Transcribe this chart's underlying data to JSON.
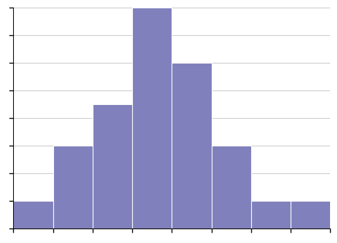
{
  "bar_heights": [
    1,
    3,
    4.5,
    8,
    6,
    3,
    1,
    1
  ],
  "bar_color": "#8080bc",
  "bar_edge_color": "#ffffff",
  "bar_edge_width": 0.8,
  "xlim": [
    0,
    8
  ],
  "ylim": [
    0,
    8
  ],
  "grid_color": "#cccccc",
  "grid_linewidth": 0.8,
  "background_color": "#ffffff",
  "figsize": [
    4.87,
    3.52
  ],
  "dpi": 100
}
